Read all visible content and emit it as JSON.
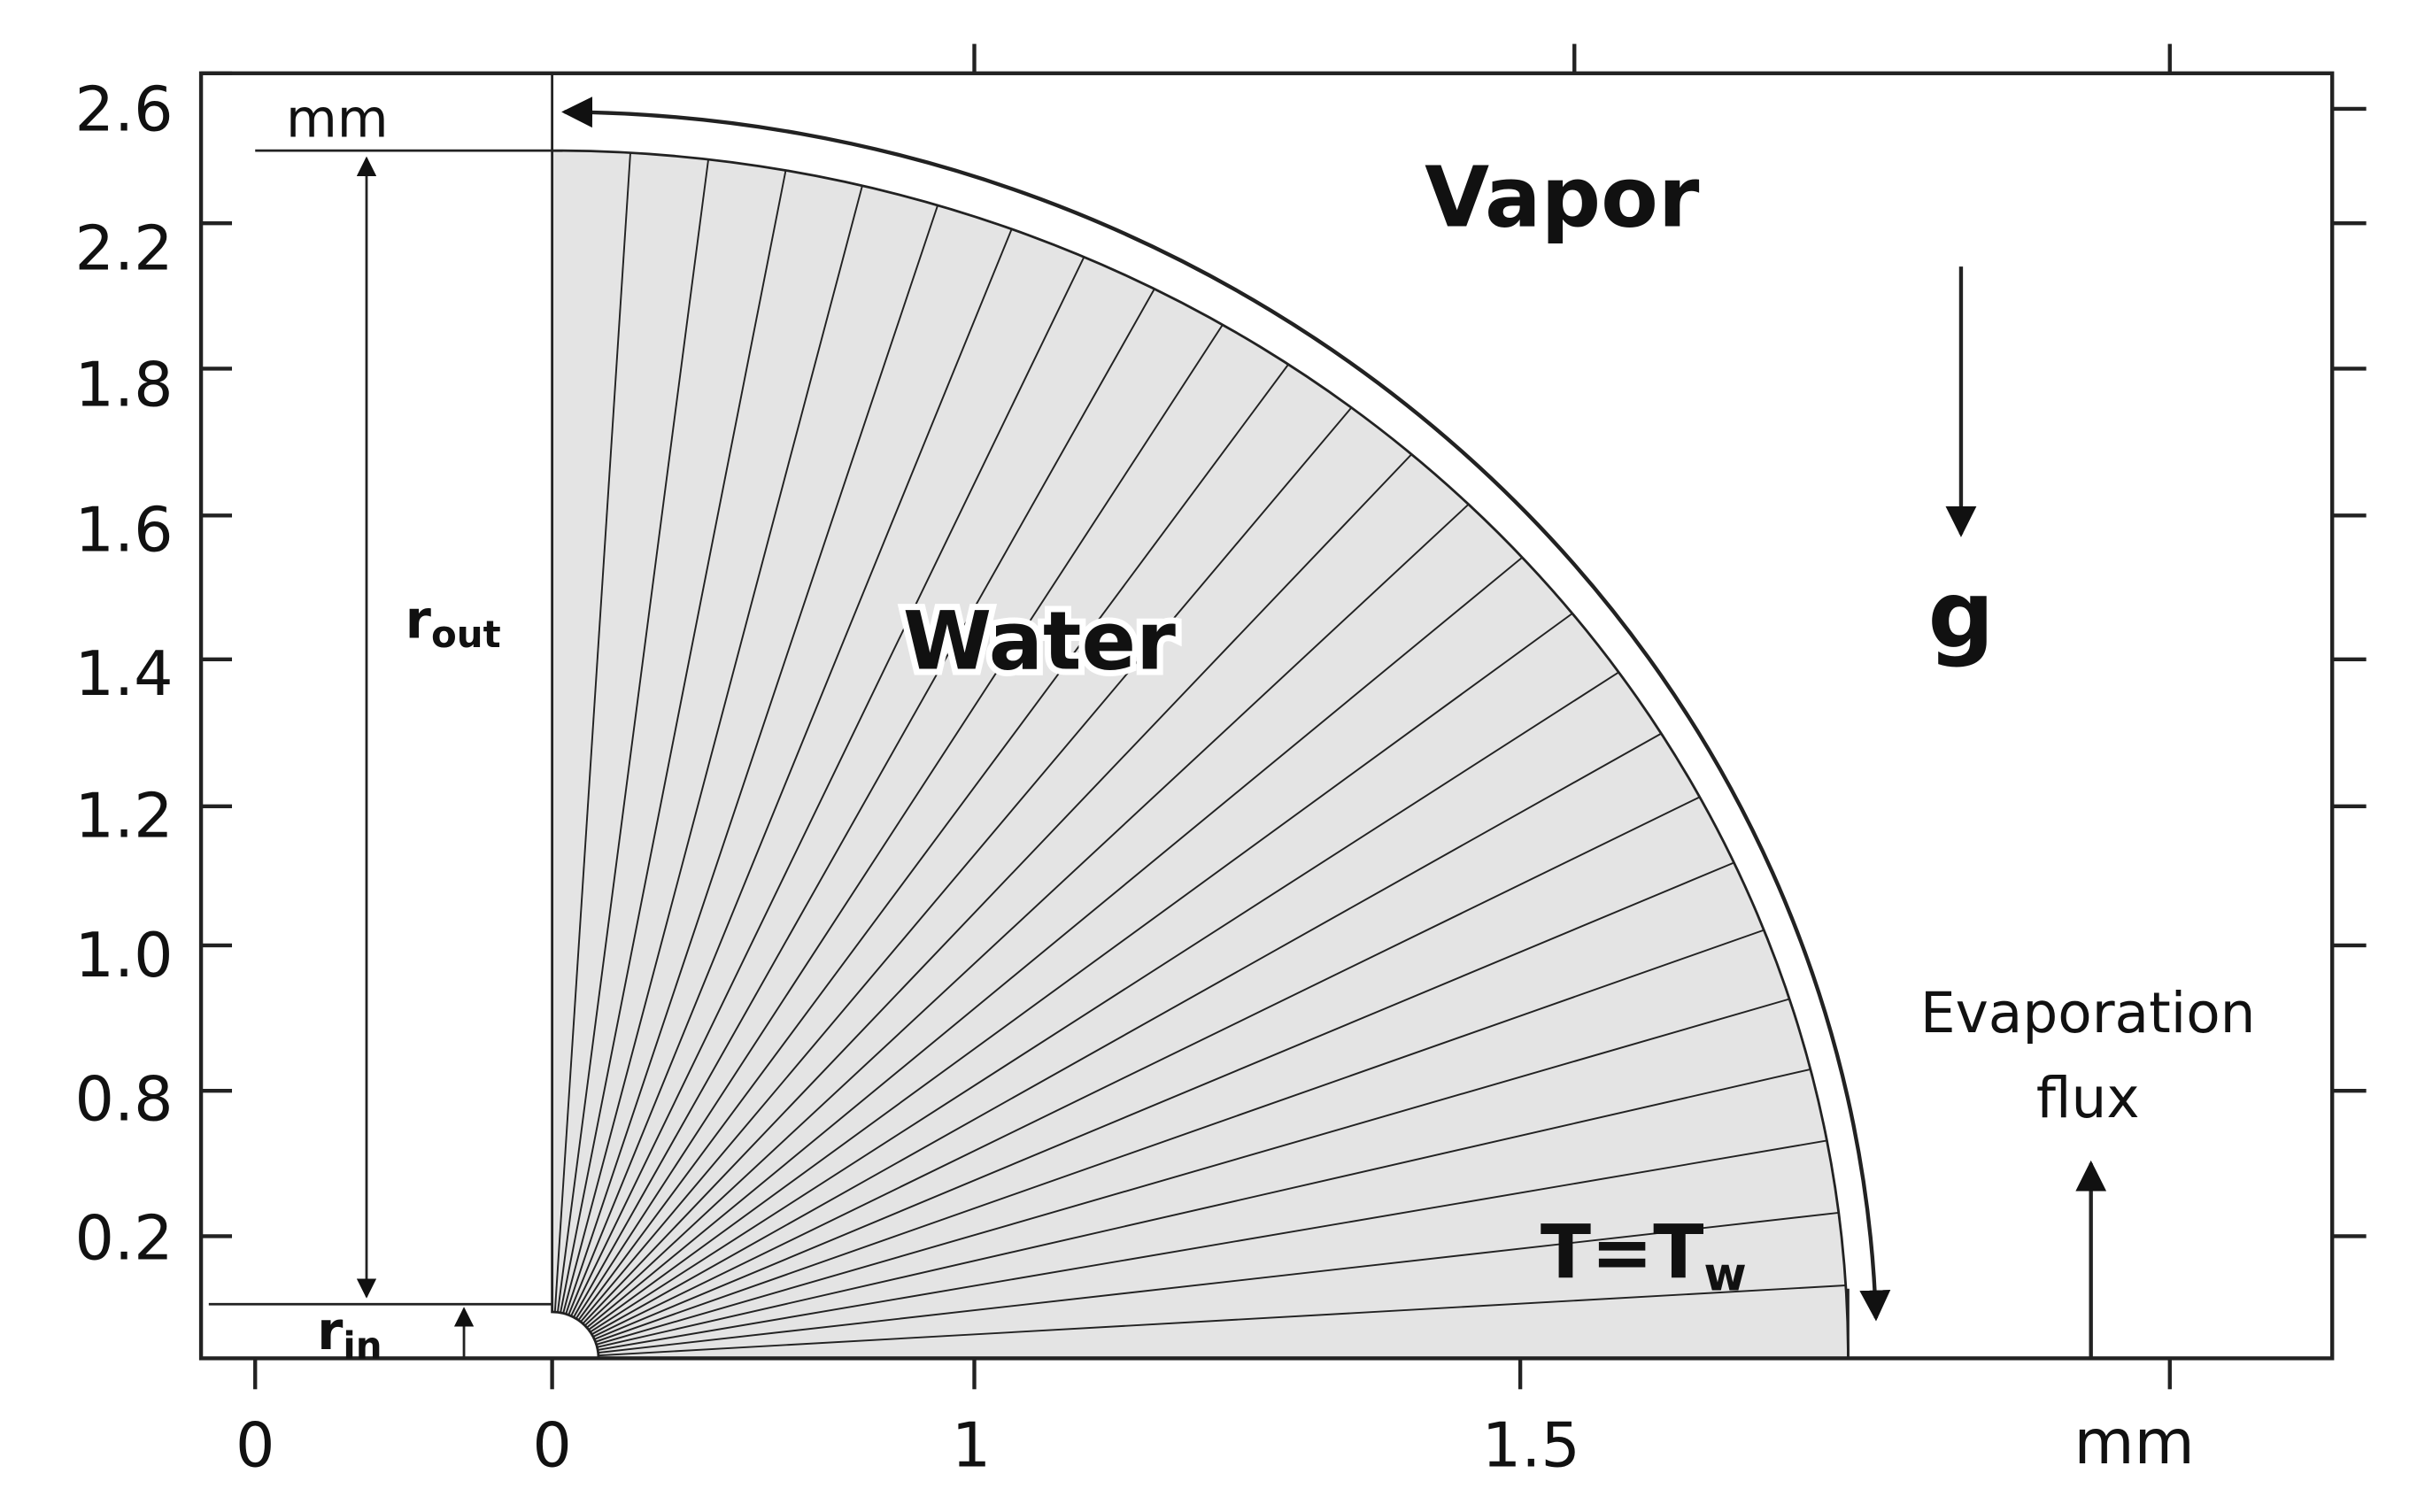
{
  "axes": {
    "y_labels": [
      "2.6",
      "2.2",
      "1.8",
      "1.6",
      "1.4",
      "1.2",
      "1.0",
      "0.8",
      "0.2"
    ],
    "x_labels": [
      "0",
      "0",
      "1",
      "1.5"
    ],
    "x_unit": "mm",
    "y_unit": "mm"
  },
  "labels": {
    "vapor": "Vapor",
    "water": "Water",
    "gravity": "g",
    "evaporation": [
      "Evaporation",
      "flux"
    ],
    "r_out": {
      "main": "r",
      "sub": "out"
    },
    "r_in": {
      "main": "r",
      "sub": "in"
    },
    "boundary": {
      "main": "T=T",
      "sub": "w"
    }
  }
}
